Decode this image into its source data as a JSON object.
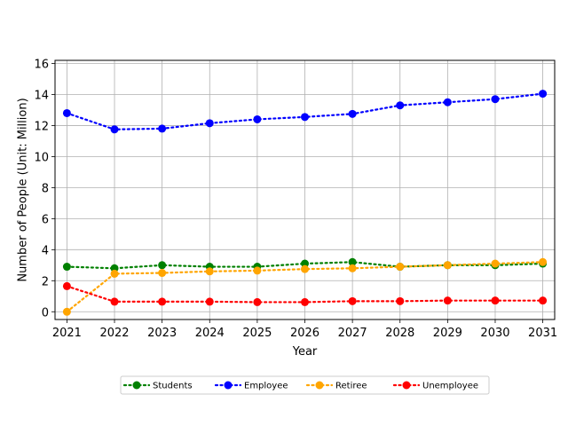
{
  "chart_data": {
    "type": "line",
    "xlabel": "Year",
    "ylabel": "Number of People (Unit: Million)",
    "x": [
      2021,
      2022,
      2023,
      2024,
      2025,
      2026,
      2027,
      2028,
      2029,
      2030,
      2031
    ],
    "xlim": [
      2020.75,
      2031.25
    ],
    "ylim": [
      -0.5,
      16.2
    ],
    "yticks": [
      0,
      2,
      4,
      6,
      8,
      10,
      12,
      14,
      16
    ],
    "grid": true,
    "legend_position": "bottom",
    "line_style": "dotted",
    "series": [
      {
        "name": "Students",
        "color": "#008000",
        "values": [
          2.9,
          2.8,
          3.0,
          2.9,
          2.9,
          3.1,
          3.2,
          2.9,
          3.0,
          3.0,
          3.1
        ]
      },
      {
        "name": "Employee",
        "color": "#0000ff",
        "values": [
          12.8,
          11.75,
          11.8,
          12.15,
          12.4,
          12.55,
          12.75,
          13.3,
          13.5,
          13.7,
          14.05
        ]
      },
      {
        "name": "Retiree",
        "color": "#ffa500",
        "values": [
          0.0,
          2.45,
          2.5,
          2.6,
          2.65,
          2.75,
          2.8,
          2.9,
          3.0,
          3.1,
          3.2
        ]
      },
      {
        "name": "Unemployee",
        "color": "#ff0000",
        "values": [
          1.65,
          0.65,
          0.65,
          0.65,
          0.62,
          0.62,
          0.68,
          0.68,
          0.72,
          0.72,
          0.72
        ]
      }
    ]
  }
}
